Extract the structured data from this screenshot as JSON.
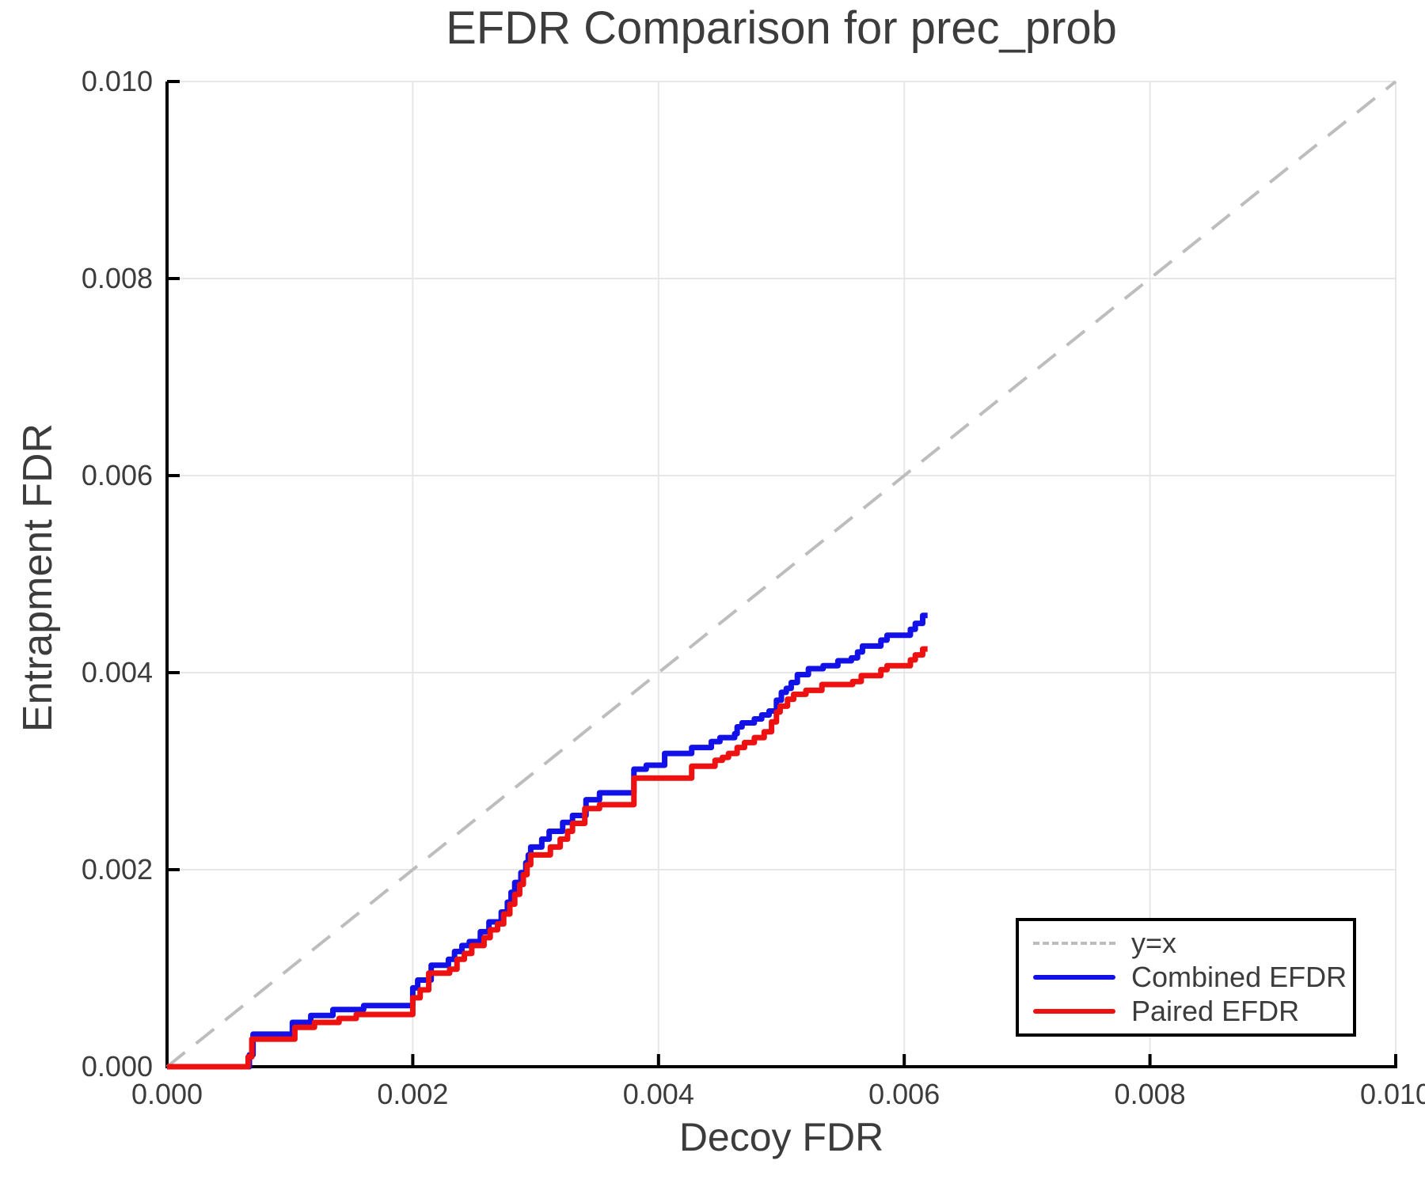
{
  "title": "EFDR Comparison for prec_prob",
  "axes": {
    "xlabel": "Decoy FDR",
    "ylabel": "Entrapment FDR",
    "x_tick_labels": [
      "0.000",
      "0.002",
      "0.004",
      "0.006",
      "0.008",
      "0.010"
    ],
    "x_tick_values": [
      0,
      0.002,
      0.004,
      0.006,
      0.008,
      0.01
    ],
    "y_tick_labels": [
      "0.000",
      "0.002",
      "0.004",
      "0.006",
      "0.008",
      "0.010"
    ],
    "y_tick_values": [
      0,
      0.002,
      0.004,
      0.006,
      0.008,
      0.01
    ]
  },
  "colors": {
    "identity": "#bdbdbd",
    "combined": "#1111e8",
    "paired": "#ee1111",
    "grid": "#e7e7e7",
    "spine": "#000000",
    "text": "#3c3c3c"
  },
  "legend": {
    "items": [
      {
        "label": "y=x",
        "style": "dashed",
        "color": "#bdbdbd"
      },
      {
        "label": "Combined EFDR",
        "style": "solid",
        "color": "#1111e8"
      },
      {
        "label": "Paired EFDR",
        "style": "solid",
        "color": "#ee1111"
      }
    ]
  },
  "chart_data": {
    "type": "line",
    "title": "EFDR Comparison for prec_prob",
    "xlabel": "Decoy FDR",
    "ylabel": "Entrapment FDR",
    "xlim": [
      0,
      0.01
    ],
    "ylim": [
      0,
      0.01
    ],
    "grid": true,
    "legend_position": "lower right",
    "series": [
      {
        "name": "y=x",
        "type": "line",
        "style": "dashed",
        "color": "#bdbdbd",
        "points": [
          [
            0,
            0
          ],
          [
            0.01,
            0.01
          ]
        ]
      },
      {
        "name": "Combined EFDR",
        "type": "step",
        "style": "solid",
        "color": "#1111e8",
        "x_end": 0.00619,
        "steps": [
          [
            0.0,
            0.0
          ],
          [
            0.00067,
            0.00012
          ],
          [
            0.0007,
            0.00033
          ],
          [
            0.00102,
            0.00045
          ],
          [
            0.00117,
            0.00052
          ],
          [
            0.00135,
            0.00058
          ],
          [
            0.0016,
            0.00062
          ],
          [
            0.002,
            0.0008
          ],
          [
            0.00204,
            0.00088
          ],
          [
            0.00215,
            0.00103
          ],
          [
            0.00229,
            0.00109
          ],
          [
            0.00234,
            0.00117
          ],
          [
            0.0024,
            0.00123
          ],
          [
            0.00246,
            0.00127
          ],
          [
            0.00255,
            0.00137
          ],
          [
            0.00262,
            0.00147
          ],
          [
            0.00272,
            0.00157
          ],
          [
            0.00277,
            0.00167
          ],
          [
            0.0028,
            0.00177
          ],
          [
            0.00283,
            0.00187
          ],
          [
            0.00288,
            0.00197
          ],
          [
            0.00292,
            0.00207
          ],
          [
            0.00294,
            0.00215
          ],
          [
            0.00296,
            0.00223
          ],
          [
            0.00305,
            0.00231
          ],
          [
            0.00311,
            0.00239
          ],
          [
            0.00322,
            0.00248
          ],
          [
            0.0033,
            0.00255
          ],
          [
            0.00341,
            0.00271
          ],
          [
            0.00352,
            0.00278
          ],
          [
            0.0038,
            0.00302
          ],
          [
            0.0039,
            0.00306
          ],
          [
            0.00405,
            0.00318
          ],
          [
            0.00427,
            0.00324
          ],
          [
            0.00443,
            0.0033
          ],
          [
            0.0045,
            0.00334
          ],
          [
            0.00462,
            0.00338
          ],
          [
            0.00464,
            0.00345
          ],
          [
            0.00468,
            0.00349
          ],
          [
            0.00478,
            0.00353
          ],
          [
            0.00484,
            0.00357
          ],
          [
            0.0049,
            0.00361
          ],
          [
            0.00496,
            0.00372
          ],
          [
            0.005,
            0.0038
          ],
          [
            0.00504,
            0.00384
          ],
          [
            0.00508,
            0.0039
          ],
          [
            0.00513,
            0.00398
          ],
          [
            0.00522,
            0.00404
          ],
          [
            0.00534,
            0.00407
          ],
          [
            0.00546,
            0.00412
          ],
          [
            0.00557,
            0.00415
          ],
          [
            0.00562,
            0.00421
          ],
          [
            0.00566,
            0.00427
          ],
          [
            0.00581,
            0.00433
          ],
          [
            0.00586,
            0.00438
          ],
          [
            0.00605,
            0.00444
          ],
          [
            0.00609,
            0.0045
          ],
          [
            0.00615,
            0.00458
          ]
        ]
      },
      {
        "name": "Paired EFDR",
        "type": "step",
        "style": "solid",
        "color": "#ee1111",
        "x_end": 0.00619,
        "steps": [
          [
            0.0,
            0.0
          ],
          [
            0.00066,
            0.0001
          ],
          [
            0.00069,
            0.00028
          ],
          [
            0.00104,
            0.0004
          ],
          [
            0.0012,
            0.00045
          ],
          [
            0.0014,
            0.00049
          ],
          [
            0.00154,
            0.00053
          ],
          [
            0.002,
            0.0007
          ],
          [
            0.00206,
            0.00078
          ],
          [
            0.00213,
            0.00095
          ],
          [
            0.0023,
            0.00099
          ],
          [
            0.00236,
            0.00109
          ],
          [
            0.00242,
            0.00115
          ],
          [
            0.00248,
            0.00123
          ],
          [
            0.00258,
            0.00131
          ],
          [
            0.00263,
            0.00139
          ],
          [
            0.00269,
            0.00145
          ],
          [
            0.00274,
            0.00155
          ],
          [
            0.00279,
            0.00165
          ],
          [
            0.00283,
            0.00175
          ],
          [
            0.00287,
            0.00185
          ],
          [
            0.0029,
            0.00195
          ],
          [
            0.00293,
            0.00205
          ],
          [
            0.00296,
            0.00215
          ],
          [
            0.00312,
            0.00223
          ],
          [
            0.0032,
            0.00231
          ],
          [
            0.00326,
            0.00239
          ],
          [
            0.0033,
            0.00247
          ],
          [
            0.0034,
            0.00262
          ],
          [
            0.00352,
            0.00266
          ],
          [
            0.0038,
            0.00293
          ],
          [
            0.00427,
            0.00305
          ],
          [
            0.00446,
            0.00311
          ],
          [
            0.00452,
            0.00314
          ],
          [
            0.00457,
            0.00318
          ],
          [
            0.00464,
            0.00324
          ],
          [
            0.0047,
            0.00329
          ],
          [
            0.00478,
            0.00334
          ],
          [
            0.00486,
            0.0034
          ],
          [
            0.00492,
            0.0035
          ],
          [
            0.00496,
            0.0036
          ],
          [
            0.00499,
            0.00366
          ],
          [
            0.00505,
            0.00373
          ],
          [
            0.0051,
            0.00378
          ],
          [
            0.0052,
            0.00382
          ],
          [
            0.00533,
            0.00388
          ],
          [
            0.00558,
            0.00391
          ],
          [
            0.00565,
            0.00397
          ],
          [
            0.00581,
            0.00403
          ],
          [
            0.00586,
            0.00407
          ],
          [
            0.00605,
            0.00413
          ],
          [
            0.00609,
            0.00418
          ],
          [
            0.00615,
            0.00424
          ]
        ]
      }
    ]
  }
}
